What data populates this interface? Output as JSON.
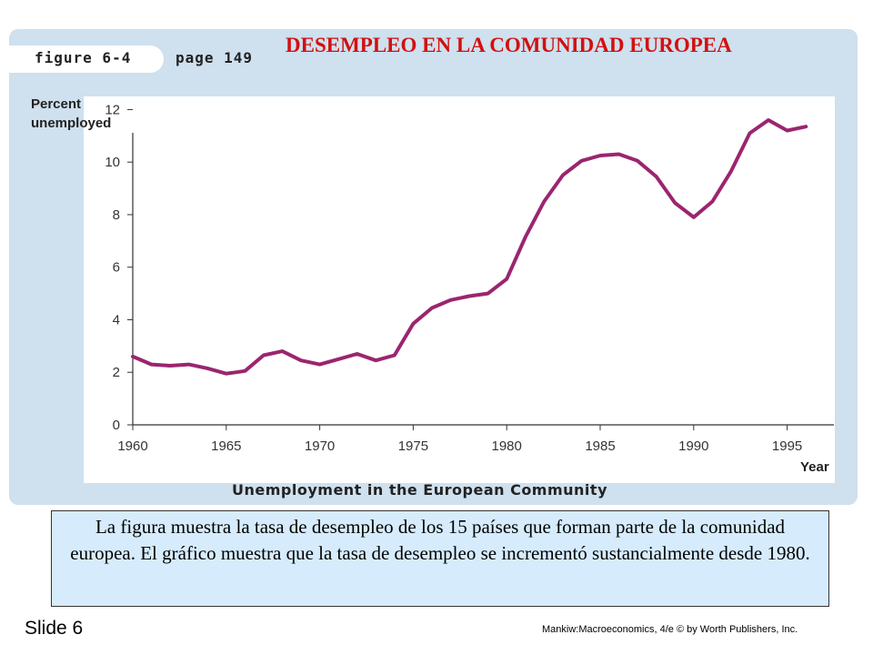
{
  "header": {
    "figure_label": "figure 6-4",
    "page_label": "page 149",
    "headline": "DESEMPLEO EN LA COMUNIDAD EUROPEA",
    "headline_color": "#d21010"
  },
  "chart_data": {
    "type": "line",
    "title": "Unemployment in the European Community",
    "ylabel": "Percent unemployed",
    "xlabel": "Year",
    "xlim": [
      1960,
      1997.5
    ],
    "ylim": [
      0,
      12.5
    ],
    "x_ticks": [
      1960,
      1965,
      1970,
      1975,
      1980,
      1985,
      1990,
      1995
    ],
    "y_ticks": [
      0,
      2,
      4,
      6,
      8,
      10,
      12
    ],
    "grid": false,
    "line_color": "#9b2570",
    "series": [
      {
        "x": [
          1960,
          1961,
          1962,
          1963,
          1964,
          1965,
          1966,
          1967,
          1968,
          1969,
          1970,
          1971,
          1972,
          1973,
          1974,
          1975,
          1976,
          1977,
          1978,
          1979,
          1980,
          1981,
          1982,
          1983,
          1984,
          1985,
          1986,
          1987,
          1988,
          1989,
          1990,
          1991,
          1992,
          1993,
          1994,
          1995,
          1996
        ],
        "y": [
          2.6,
          2.3,
          2.25,
          2.3,
          2.15,
          1.95,
          2.05,
          2.65,
          2.8,
          2.45,
          2.3,
          2.5,
          2.7,
          2.45,
          2.65,
          3.85,
          4.45,
          4.75,
          4.9,
          5.0,
          5.55,
          7.15,
          8.5,
          9.5,
          10.05,
          10.25,
          10.3,
          10.05,
          9.45,
          8.45,
          7.9,
          8.5,
          9.65,
          11.1,
          11.6,
          11.2,
          11.35
        ]
      }
    ]
  },
  "description": "La figura muestra la tasa de desempleo de los 15 países que forman parte de la comunidad europea. El gráfico muestra que la tasa de desempleo se incrementó sustancialmente desde 1980.",
  "footer": {
    "slide": "Slide 6",
    "credit": "Mankiw:Macroeconomics, 4/e © by Worth Publishers, Inc."
  }
}
